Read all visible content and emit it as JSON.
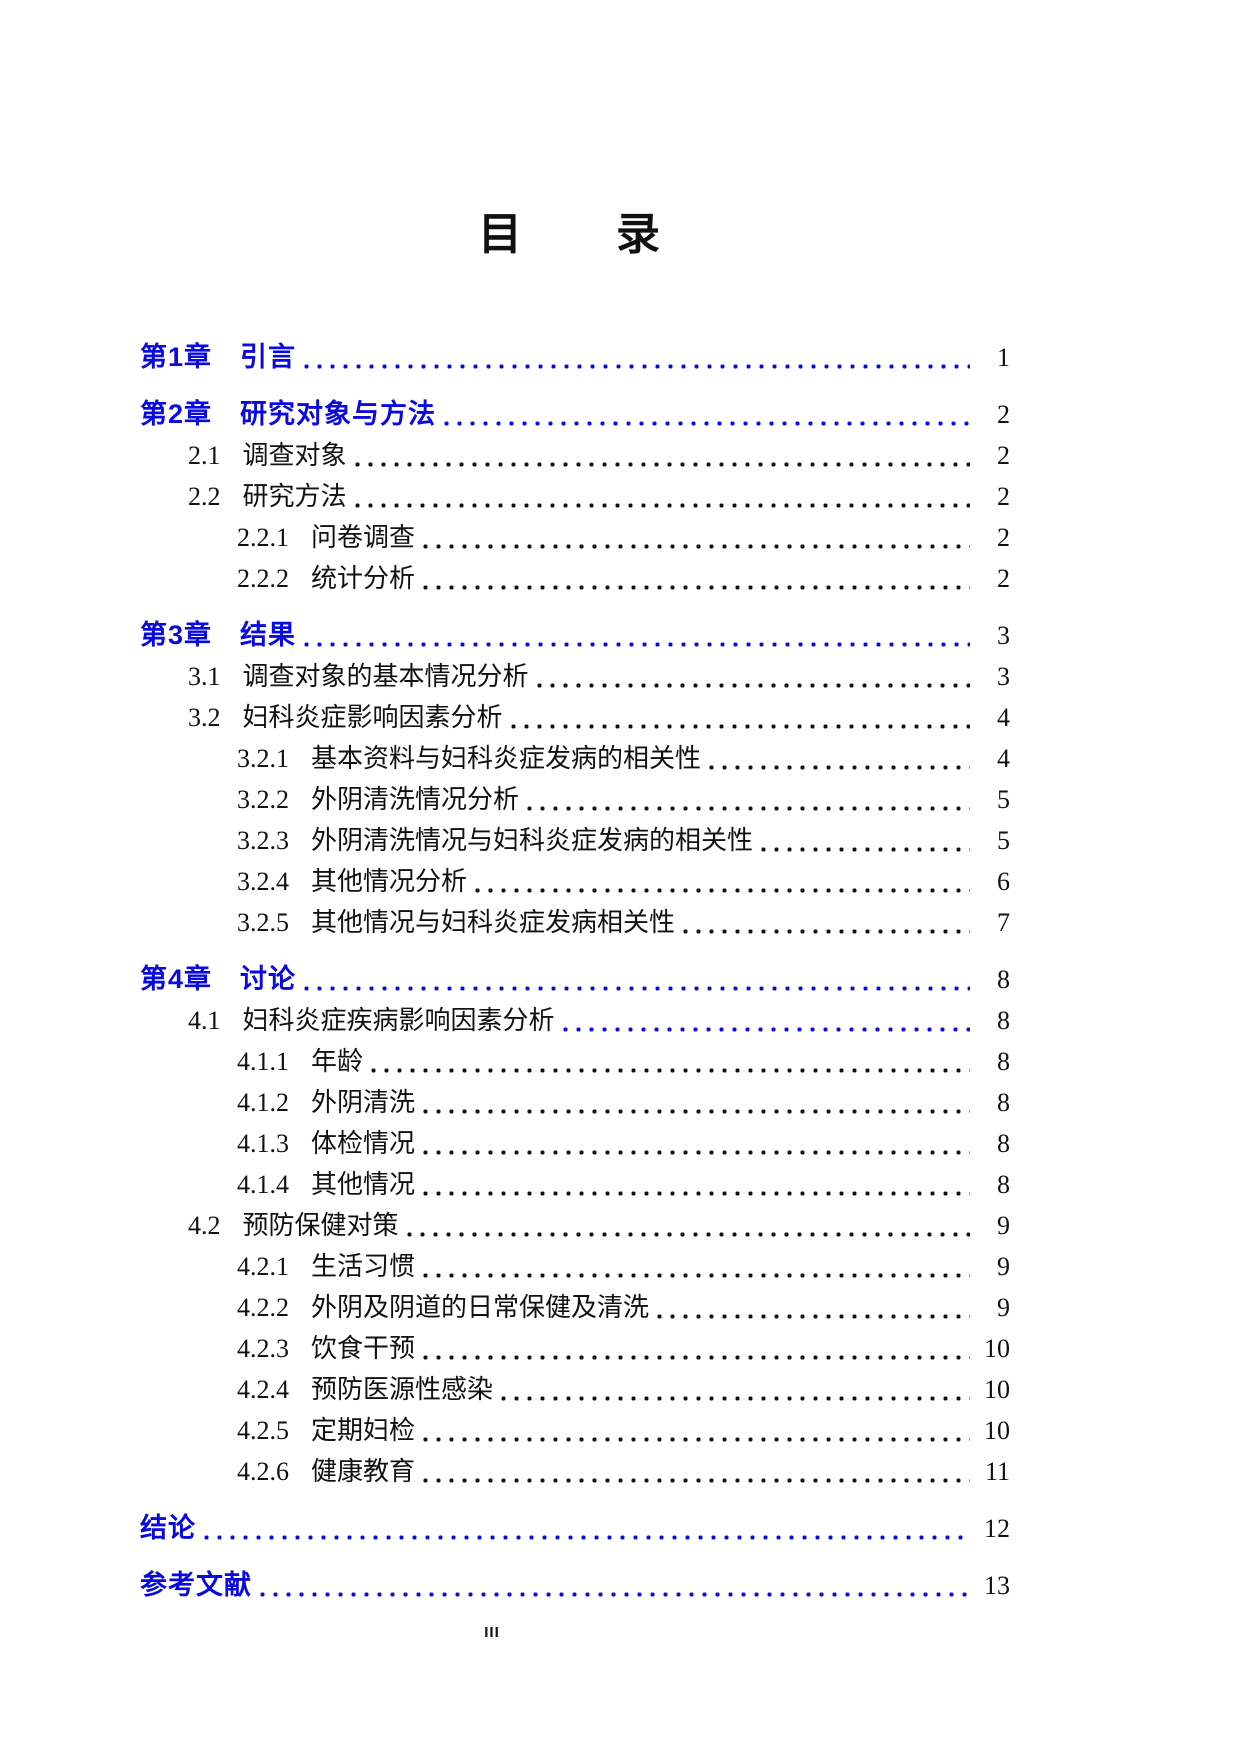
{
  "page": {
    "title": "目　　录",
    "footer": "III"
  },
  "colors": {
    "link_blue": "#0a0ae0",
    "text_black": "#111111"
  },
  "toc": [
    {
      "num": "第1章",
      "label": "引言",
      "page": "1",
      "level": 1,
      "chapter": true,
      "blue_dots": true
    },
    {
      "num": "第2章",
      "label": "研究对象与方法",
      "page": "2",
      "level": 1,
      "chapter": true,
      "blue_dots": true
    },
    {
      "num": "2.1",
      "label": "调查对象",
      "page": "2",
      "level": 2,
      "chapter": false,
      "blue_dots": false
    },
    {
      "num": "2.2",
      "label": "研究方法",
      "page": "2",
      "level": 2,
      "chapter": false,
      "blue_dots": false
    },
    {
      "num": "2.2.1",
      "label": "问卷调查",
      "page": "2",
      "level": 3,
      "chapter": false,
      "blue_dots": false
    },
    {
      "num": "2.2.2",
      "label": "统计分析",
      "page": "2",
      "level": 3,
      "chapter": false,
      "blue_dots": false
    },
    {
      "num": "第3章",
      "label": "结果",
      "page": "3",
      "level": 1,
      "chapter": true,
      "blue_dots": true
    },
    {
      "num": "3.1",
      "label": "调查对象的基本情况分析",
      "page": "3",
      "level": 2,
      "chapter": false,
      "blue_dots": false
    },
    {
      "num": "3.2",
      "label": "妇科炎症影响因素分析",
      "page": "4",
      "level": 2,
      "chapter": false,
      "blue_dots": false
    },
    {
      "num": "3.2.1",
      "label": "基本资料与妇科炎症发病的相关性",
      "page": "4",
      "level": 3,
      "chapter": false,
      "blue_dots": false
    },
    {
      "num": "3.2.2",
      "label": "外阴清洗情况分析",
      "page": "5",
      "level": 3,
      "chapter": false,
      "blue_dots": false
    },
    {
      "num": "3.2.3",
      "label": "外阴清洗情况与妇科炎症发病的相关性",
      "page": "5",
      "level": 3,
      "chapter": false,
      "blue_dots": false
    },
    {
      "num": "3.2.4",
      "label": "其他情况分析",
      "page": "6",
      "level": 3,
      "chapter": false,
      "blue_dots": false
    },
    {
      "num": "3.2.5",
      "label": "其他情况与妇科炎症发病相关性",
      "page": "7",
      "level": 3,
      "chapter": false,
      "blue_dots": false
    },
    {
      "num": "第4章",
      "label": "讨论",
      "page": "8",
      "level": 1,
      "chapter": true,
      "blue_dots": true
    },
    {
      "num": "4.1",
      "label": "妇科炎症疾病影响因素分析",
      "page": "8",
      "level": 2,
      "chapter": false,
      "blue_dots": true
    },
    {
      "num": "4.1.1",
      "label": "年龄",
      "page": "8",
      "level": 3,
      "chapter": false,
      "blue_dots": false
    },
    {
      "num": "4.1.2",
      "label": "外阴清洗",
      "page": "8",
      "level": 3,
      "chapter": false,
      "blue_dots": false
    },
    {
      "num": "4.1.3",
      "label": "体检情况",
      "page": "8",
      "level": 3,
      "chapter": false,
      "blue_dots": false
    },
    {
      "num": "4.1.4",
      "label": "其他情况",
      "page": "8",
      "level": 3,
      "chapter": false,
      "blue_dots": false
    },
    {
      "num": "4.2",
      "label": "预防保健对策",
      "page": "9",
      "level": 2,
      "chapter": false,
      "blue_dots": false
    },
    {
      "num": "4.2.1",
      "label": "生活习惯",
      "page": "9",
      "level": 3,
      "chapter": false,
      "blue_dots": false
    },
    {
      "num": "4.2.2",
      "label": "外阴及阴道的日常保健及清洗",
      "page": "9",
      "level": 3,
      "chapter": false,
      "blue_dots": false
    },
    {
      "num": "4.2.3",
      "label": "饮食干预",
      "page": "10",
      "level": 3,
      "chapter": false,
      "blue_dots": false
    },
    {
      "num": "4.2.4",
      "label": "预防医源性感染",
      "page": "10",
      "level": 3,
      "chapter": false,
      "blue_dots": false
    },
    {
      "num": "4.2.5",
      "label": "定期妇检",
      "page": "10",
      "level": 3,
      "chapter": false,
      "blue_dots": false
    },
    {
      "num": "4.2.6",
      "label": "健康教育",
      "page": "11",
      "level": 3,
      "chapter": false,
      "blue_dots": false
    },
    {
      "num": "",
      "label": "结论",
      "page": "12",
      "level": 1,
      "chapter": true,
      "blue_dots": true
    },
    {
      "num": "",
      "label": "参考文献",
      "page": "13",
      "level": 1,
      "chapter": true,
      "blue_dots": true
    }
  ]
}
